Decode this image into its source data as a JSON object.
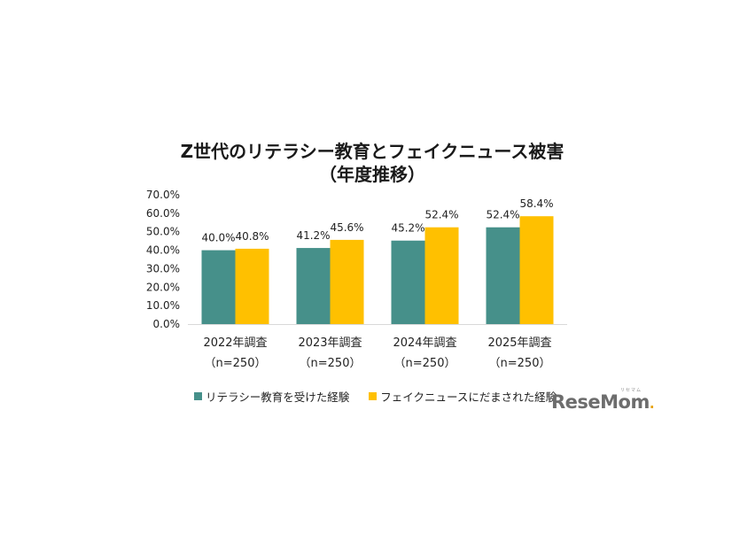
{
  "chart_data": {
    "type": "bar",
    "title_lines": [
      "Z世代のリテラシー教育とフェイクニュース被害",
      "（年度推移）"
    ],
    "categories": [
      [
        "2022年調査",
        "（n=250）"
      ],
      [
        "2023年調査",
        "（n=250）"
      ],
      [
        "2024年調査",
        "（n=250）"
      ],
      [
        "2025年調査",
        "（n=250）"
      ]
    ],
    "series": [
      {
        "name": "リテラシー教育を受けた経験",
        "color": "#46908a",
        "values": [
          40.0,
          41.2,
          45.2,
          52.4
        ],
        "labels": [
          "40.0%",
          "41.2%",
          "45.2%",
          "52.4%"
        ]
      },
      {
        "name": "フェイクニュースにだまされた経験",
        "color": "#ffc000",
        "values": [
          40.8,
          45.6,
          52.4,
          58.4
        ],
        "labels": [
          "40.8%",
          "45.6%",
          "52.4%",
          "58.4%"
        ]
      }
    ],
    "yticks": [
      "0.0%",
      "10.0%",
      "20.0%",
      "30.0%",
      "40.0%",
      "50.0%",
      "60.0%",
      "70.0%"
    ],
    "ylim": [
      0,
      70
    ],
    "grid": false,
    "legend_position": "bottom"
  },
  "logo": {
    "text": "ReseMom",
    "dot": ".",
    "sub": "リセマム"
  }
}
